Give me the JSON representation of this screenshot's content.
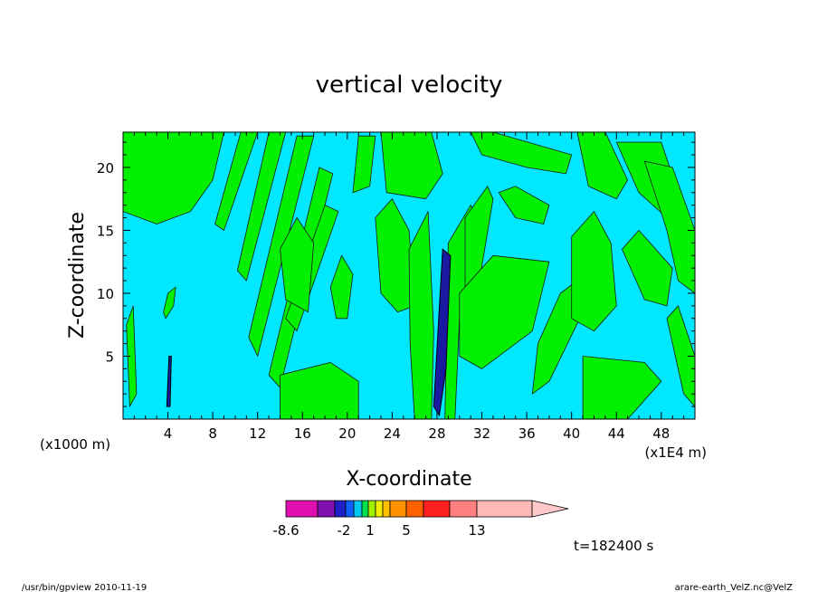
{
  "chart_data": {
    "type": "heatmap",
    "title": "vertical velocity",
    "xlabel": "X-coordinate",
    "ylabel": "Z-coordinate",
    "x_unit_left": "(x1000 m)",
    "x_unit_right": "(x1E4 m)",
    "xlim": [
      0,
      51
    ],
    "ylim": [
      0,
      22.8
    ],
    "xticks": [
      4,
      8,
      12,
      16,
      20,
      24,
      28,
      32,
      36,
      40,
      44,
      48
    ],
    "yticks": [
      5,
      10,
      15,
      20
    ],
    "time_label": "t=182400 s",
    "field_levels": {
      "background": "#00e8ff",
      "positive": "#00f000",
      "strong": "#1a1aa0"
    },
    "regions_positive": [
      {
        "points": [
          [
            0,
            22.8
          ],
          [
            9,
            22.8
          ],
          [
            8,
            19
          ],
          [
            6,
            16.5
          ],
          [
            3,
            15.5
          ],
          [
            0,
            16.5
          ]
        ]
      },
      {
        "points": [
          [
            10.5,
            22.8
          ],
          [
            12,
            22.8
          ],
          [
            9,
            15
          ],
          [
            8.2,
            15.5
          ]
        ]
      },
      {
        "points": [
          [
            13,
            22.8
          ],
          [
            14.5,
            22.8
          ],
          [
            11,
            11
          ],
          [
            10.2,
            11.8
          ]
        ]
      },
      {
        "points": [
          [
            15.5,
            22.5
          ],
          [
            17,
            22.5
          ],
          [
            12,
            5
          ],
          [
            11.2,
            6.5
          ]
        ]
      },
      {
        "points": [
          [
            17.5,
            20
          ],
          [
            18.7,
            19.5
          ],
          [
            14,
            2.5
          ],
          [
            13,
            3.5
          ]
        ]
      },
      {
        "points": [
          [
            18,
            17
          ],
          [
            19.2,
            16.5
          ],
          [
            15.5,
            7
          ],
          [
            14.5,
            8
          ]
        ]
      },
      {
        "points": [
          [
            21,
            22.5
          ],
          [
            22.5,
            22.5
          ],
          [
            22,
            18.5
          ],
          [
            20.5,
            18
          ]
        ]
      },
      {
        "points": [
          [
            23,
            22.8
          ],
          [
            27.5,
            22.8
          ],
          [
            28.5,
            19.5
          ],
          [
            27,
            17.5
          ],
          [
            23.5,
            18
          ]
        ]
      },
      {
        "points": [
          [
            14,
            3.5
          ],
          [
            18.5,
            4.5
          ],
          [
            21,
            3
          ],
          [
            21,
            0
          ],
          [
            14,
            0
          ]
        ]
      },
      {
        "points": [
          [
            18.5,
            10.5
          ],
          [
            19.5,
            13
          ],
          [
            20.5,
            11.5
          ],
          [
            20,
            8
          ],
          [
            19,
            8
          ]
        ]
      },
      {
        "points": [
          [
            14,
            13.5
          ],
          [
            15.5,
            16
          ],
          [
            17,
            14
          ],
          [
            16.5,
            8.5
          ],
          [
            14.5,
            9.5
          ]
        ]
      },
      {
        "points": [
          [
            22.5,
            16
          ],
          [
            24,
            17.5
          ],
          [
            25.5,
            15
          ],
          [
            26,
            9
          ],
          [
            24.5,
            8.5
          ],
          [
            23,
            10
          ]
        ]
      },
      {
        "points": [
          [
            25.5,
            13.5
          ],
          [
            27.2,
            16.5
          ],
          [
            27.7,
            7
          ],
          [
            27.5,
            0
          ],
          [
            26,
            0
          ],
          [
            25.6,
            6
          ]
        ]
      },
      {
        "points": [
          [
            29,
            14
          ],
          [
            31,
            17
          ],
          [
            31.8,
            15.5
          ],
          [
            30,
            8
          ],
          [
            29.6,
            0
          ],
          [
            28.7,
            0
          ]
        ]
      },
      {
        "points": [
          [
            30.5,
            16
          ],
          [
            32.5,
            18.5
          ],
          [
            33,
            17.5
          ],
          [
            31.5,
            9.5
          ],
          [
            30.5,
            9
          ]
        ]
      },
      {
        "points": [
          [
            30,
            10
          ],
          [
            33,
            13
          ],
          [
            38,
            12.5
          ],
          [
            36.5,
            7
          ],
          [
            32,
            4
          ],
          [
            30,
            5
          ]
        ]
      },
      {
        "points": [
          [
            31,
            22.8
          ],
          [
            33,
            22.8
          ],
          [
            40,
            21
          ],
          [
            39.5,
            19.5
          ],
          [
            36,
            20
          ],
          [
            32,
            21
          ]
        ]
      },
      {
        "points": [
          [
            33.5,
            18
          ],
          [
            35,
            18.5
          ],
          [
            38,
            17
          ],
          [
            37.5,
            15.5
          ],
          [
            35,
            16
          ]
        ]
      },
      {
        "points": [
          [
            36.5,
            2
          ],
          [
            38,
            3
          ],
          [
            41,
            8.5
          ],
          [
            40.5,
            11
          ],
          [
            39,
            10
          ],
          [
            37,
            6
          ]
        ]
      },
      {
        "points": [
          [
            40,
            14.5
          ],
          [
            42,
            16.5
          ],
          [
            43.5,
            14
          ],
          [
            44,
            9
          ],
          [
            42,
            7
          ],
          [
            40,
            8
          ]
        ]
      },
      {
        "points": [
          [
            40.5,
            22.8
          ],
          [
            43,
            22.8
          ],
          [
            45,
            19
          ],
          [
            44,
            17.5
          ],
          [
            41.5,
            18.5
          ]
        ]
      },
      {
        "points": [
          [
            41,
            5
          ],
          [
            46.5,
            4.5
          ],
          [
            48,
            3
          ],
          [
            45,
            0
          ],
          [
            41,
            0
          ]
        ]
      },
      {
        "points": [
          [
            44,
            22
          ],
          [
            48,
            22
          ],
          [
            49.5,
            18
          ],
          [
            48.5,
            16
          ],
          [
            46,
            18
          ]
        ]
      },
      {
        "points": [
          [
            44.5,
            13.5
          ],
          [
            46,
            15
          ],
          [
            49,
            12
          ],
          [
            48.5,
            9
          ],
          [
            46.5,
            9.5
          ]
        ]
      },
      {
        "points": [
          [
            46.5,
            20.5
          ],
          [
            49,
            20
          ],
          [
            51,
            15
          ],
          [
            51,
            10
          ],
          [
            49.5,
            11
          ],
          [
            48.5,
            15
          ]
        ]
      },
      {
        "points": [
          [
            48.5,
            8
          ],
          [
            49.5,
            9
          ],
          [
            51,
            5
          ],
          [
            51,
            1
          ],
          [
            50,
            2
          ]
        ]
      },
      {
        "points": [
          [
            0.3,
            7.5
          ],
          [
            0.9,
            9
          ],
          [
            1.2,
            2
          ],
          [
            0.6,
            1
          ]
        ]
      },
      {
        "points": [
          [
            3.8,
            8
          ],
          [
            4.5,
            9
          ],
          [
            4.7,
            10.5
          ],
          [
            4,
            10
          ],
          [
            3.6,
            8.5
          ]
        ]
      }
    ],
    "regions_strong": [
      {
        "points": [
          [
            27.7,
            1
          ],
          [
            28.5,
            13.5
          ],
          [
            29.2,
            13
          ],
          [
            28.8,
            4
          ],
          [
            28.2,
            0.3
          ]
        ]
      },
      {
        "points": [
          [
            3.9,
            1
          ],
          [
            4.1,
            5
          ],
          [
            4.3,
            5
          ],
          [
            4.2,
            1
          ]
        ]
      }
    ]
  },
  "colorbar": {
    "labels": [
      "-8.6",
      "-2",
      "1",
      "5",
      "13"
    ],
    "colors": [
      "#e010b0",
      "#8010b0",
      "#2020c8",
      "#1060ff",
      "#00c8f0",
      "#00e050",
      "#a0f000",
      "#f0f000",
      "#ffc000",
      "#ff9000",
      "#ff6000",
      "#ff2020",
      "#ff8080",
      "#ffb8b8"
    ]
  },
  "footer": {
    "left": "/usr/bin/gpview  2010-11-19",
    "right": "arare-earth_VelZ.nc@VelZ"
  }
}
